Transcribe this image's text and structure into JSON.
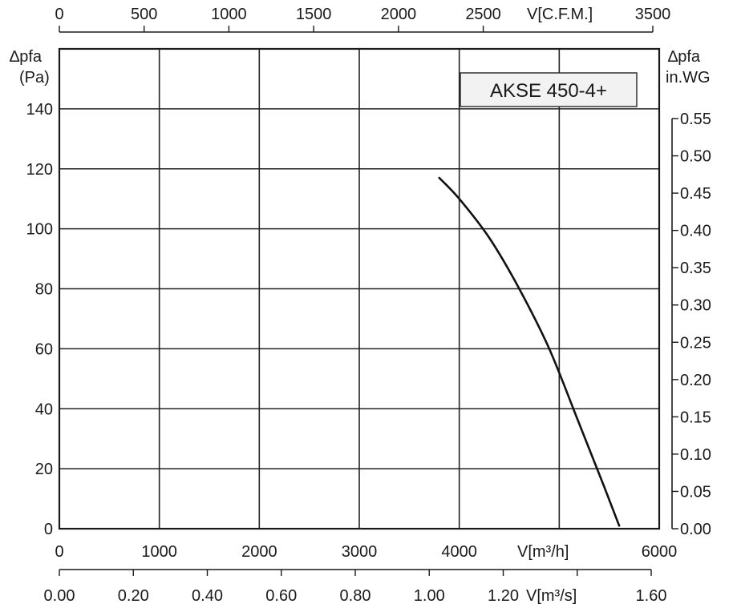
{
  "chart_data": {
    "type": "line",
    "model_label": "AKSE 450-4+",
    "series": [
      {
        "x": [
          3800,
          4000,
          4300,
          4600,
          4900,
          5200,
          5450,
          5600
        ],
        "y": [
          117,
          110,
          97,
          80,
          60,
          35,
          14,
          1
        ]
      }
    ],
    "xlim": [
      0,
      6000
    ],
    "ylim": [
      0,
      160
    ],
    "grid": true,
    "x_ticks": [
      0,
      1000,
      2000,
      3000,
      4000,
      6000
    ],
    "x_tick_labels": [
      "0",
      "1000",
      "2000",
      "3000",
      "4000",
      "6000"
    ],
    "x_unit_label": "V[m³/h]",
    "y_ticks": [
      0,
      20,
      40,
      60,
      80,
      100,
      120,
      140
    ],
    "y_tick_labels": [
      "0",
      "20",
      "40",
      "60",
      "80",
      "100",
      "120",
      "140"
    ],
    "y_title": "∆pfa",
    "y_unit": "(Pa)",
    "top_axis": {
      "ticks": [
        0,
        500,
        1000,
        1500,
        2000,
        2500,
        3500
      ],
      "tick_labels": [
        "0",
        "500",
        "1000",
        "1500",
        "2000",
        "2500",
        "3500"
      ],
      "unit_label": "V[C.F.M.]",
      "range": [
        0,
        3500
      ]
    },
    "bottom_axis": {
      "ticks": [
        0.0,
        0.2,
        0.4,
        0.6,
        0.8,
        1.0,
        1.2,
        1.6
      ],
      "tick_labels": [
        "0.00",
        "0.20",
        "0.40",
        "0.60",
        "0.80",
        "1.00",
        "1.20",
        "1.60"
      ],
      "minor_ticks": [
        1.4
      ],
      "unit_label": "V[m³/s]",
      "range": [
        0,
        1.6
      ]
    },
    "right_axis": {
      "title": "∆pfa",
      "unit": "in.WG",
      "ticks": [
        0.0,
        0.05,
        0.1,
        0.15,
        0.2,
        0.25,
        0.3,
        0.35,
        0.4,
        0.45,
        0.5,
        0.55
      ],
      "tick_labels": [
        "0.00",
        "0.05",
        "0.10",
        "0.15",
        "0.20",
        "0.25",
        "0.30",
        "0.35",
        "0.40",
        "0.45",
        "0.50",
        "0.55"
      ],
      "range": [
        0,
        0.55
      ]
    }
  }
}
